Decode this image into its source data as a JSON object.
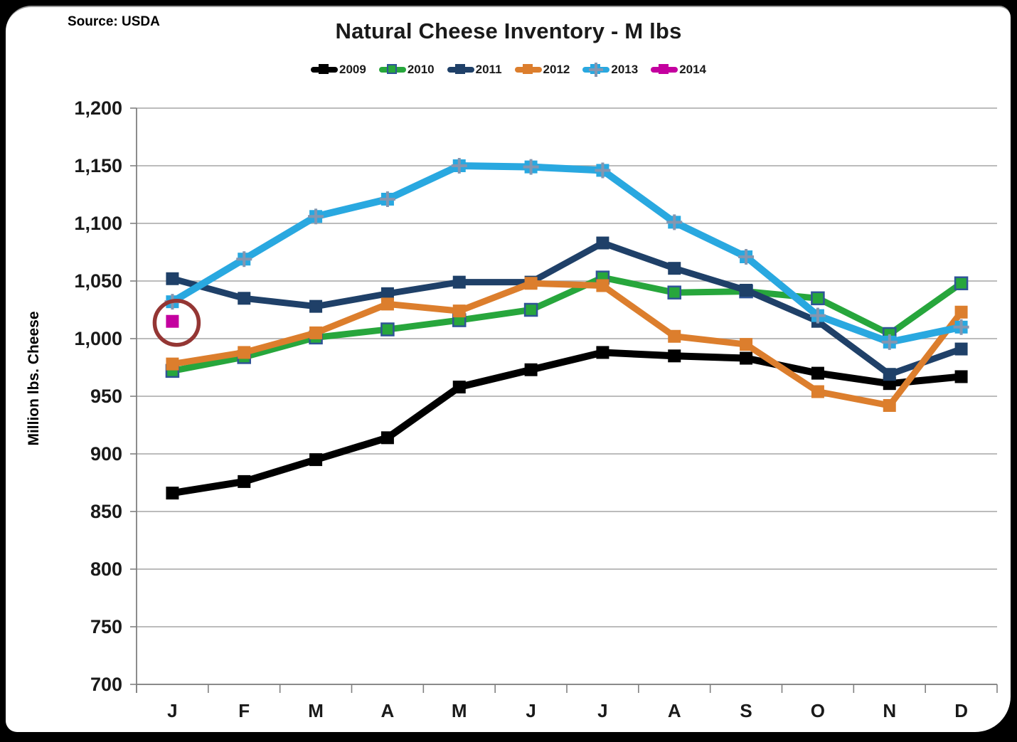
{
  "source_label": "Source: USDA",
  "title": "Natural Cheese Inventory  - M lbs",
  "y_axis_title": "Million lbs. Cheese",
  "colors": {
    "grid": "#a6a6a6",
    "axis": "#808080",
    "annotation_circle": "#943634",
    "plus_marker_cross": "#8496b0",
    "green_marker_border": "#2f5496"
  },
  "chart_data": {
    "type": "line",
    "title": "Natural Cheese Inventory  - M lbs",
    "source": "Source: USDA",
    "xlabel": "",
    "ylabel": "Million lbs. Cheese",
    "ylim": [
      700,
      1200
    ],
    "ytick_step": 50,
    "y_tick_labels": [
      "700",
      "750",
      "800",
      "850",
      "900",
      "950",
      "1,000",
      "1,050",
      "1,100",
      "1,150",
      "1,200"
    ],
    "grid": true,
    "legend_position": "top",
    "categories": [
      "J",
      "F",
      "M",
      "A",
      "M",
      "J",
      "J",
      "A",
      "S",
      "O",
      "N",
      "D"
    ],
    "series": [
      {
        "name": "2009",
        "color": "#000000",
        "marker": "square",
        "line_width": 10,
        "values": [
          866,
          876,
          895,
          914,
          958,
          973,
          988,
          985,
          983,
          970,
          961,
          967
        ]
      },
      {
        "name": "2010",
        "color": "#27a63c",
        "marker": "square-outline",
        "line_width": 9,
        "values": [
          972,
          984,
          1001,
          1008,
          1016,
          1025,
          1053,
          1040,
          1041,
          1035,
          1004,
          1048
        ]
      },
      {
        "name": "2011",
        "color": "#1f4068",
        "marker": "square",
        "line_width": 9,
        "values": [
          1052,
          1035,
          1028,
          1039,
          1049,
          1049,
          1083,
          1061,
          1042,
          1015,
          969,
          991
        ]
      },
      {
        "name": "2012",
        "color": "#dc7e2d",
        "marker": "square",
        "line_width": 9,
        "values": [
          978,
          988,
          1005,
          1030,
          1024,
          1048,
          1046,
          1002,
          995,
          954,
          942,
          1023
        ]
      },
      {
        "name": "2013",
        "color": "#29a8e0",
        "marker": "plus",
        "line_width": 10,
        "values": [
          1032,
          1069,
          1106,
          1121,
          1150,
          1149,
          1146,
          1101,
          1071,
          1020,
          997,
          1010
        ]
      },
      {
        "name": "2014",
        "color": "#c4009f",
        "marker": "square",
        "line_width": 9,
        "values": [
          1015,
          null,
          null,
          null,
          null,
          null,
          null,
          null,
          null,
          null,
          null,
          null
        ]
      }
    ],
    "annotation": {
      "type": "circle",
      "series": "2014",
      "category_index": 0,
      "value": 1015,
      "color": "#943634",
      "radius": 31
    }
  }
}
